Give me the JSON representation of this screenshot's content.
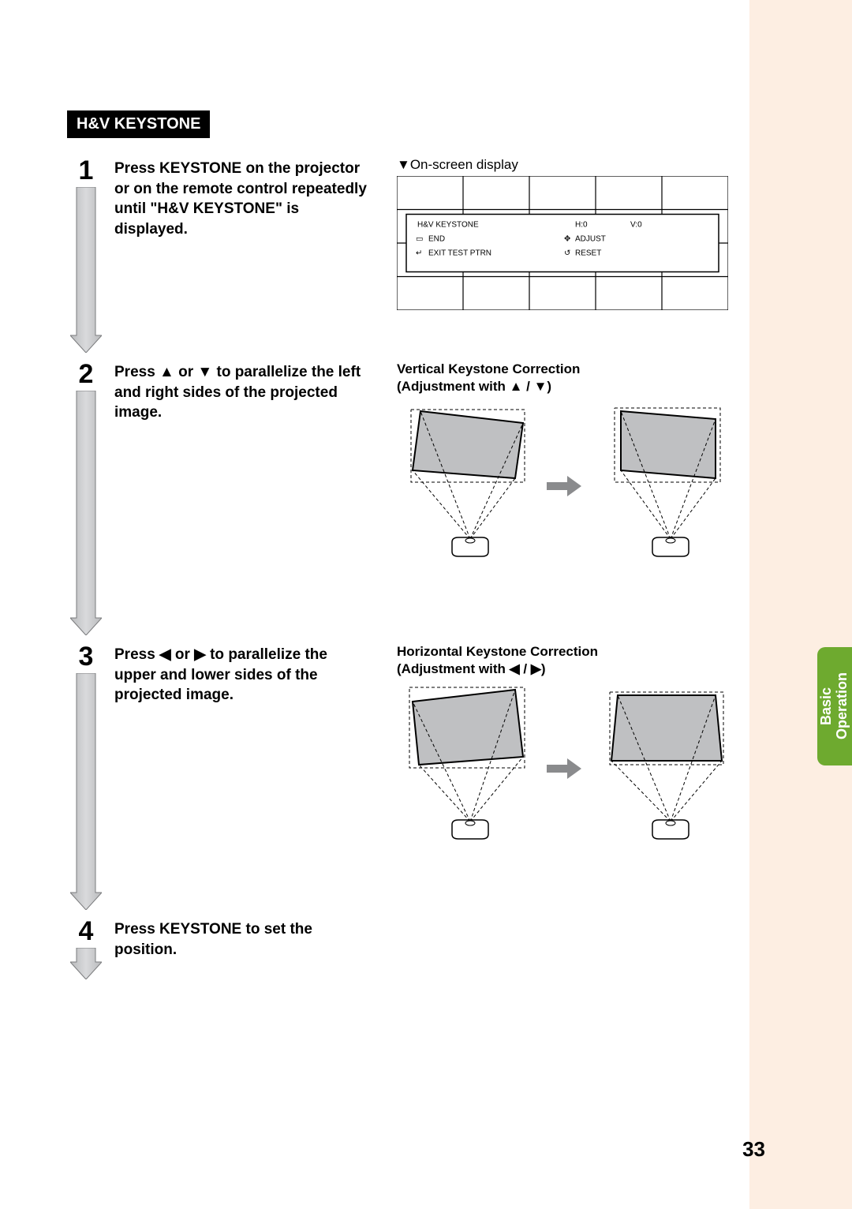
{
  "page_number": "33",
  "section_header": "H&V KEYSTONE",
  "side_tab": {
    "line1": "Basic",
    "line2": "Operation",
    "bg_color": "#6eaa2f"
  },
  "pink_band_color": "#fdeee2",
  "steps": [
    {
      "num": "1",
      "arrow_height": 210,
      "text_html": "Press <b>KEYSTONE</b> on the projector or on the remote control repeatedly until \"H&V KEYSTONE\" is displayed."
    },
    {
      "num": "2",
      "arrow_height": 310,
      "text_html": "Press ▲ or ▼ to parallelize the left and right sides of the projected image."
    },
    {
      "num": "3",
      "arrow_height": 300,
      "text_html": "Press ◀ or ▶ to parallelize the upper and lower sides of the projected image."
    },
    {
      "num": "4",
      "arrow_height": 40,
      "text_html": "Press <b>KEYSTONE</b> to set the position."
    }
  ],
  "osd": {
    "label": "▼On-screen display",
    "cols": 5,
    "rows": 4,
    "items": {
      "title": "H&V KEYSTONE",
      "h_val": "H:0",
      "v_val": "V:0",
      "end": "END",
      "adjust": "ADJUST",
      "exit": "EXIT TEST PTRN",
      "reset": "RESET"
    },
    "font_size": 10
  },
  "vertical_correction": {
    "heading": "Vertical Keystone Correction",
    "sub": "(Adjustment with ▲ / ▼)"
  },
  "horizontal_correction": {
    "heading": "Horizontal Keystone Correction",
    "sub": "(Adjustment with ◀ / ▶)"
  },
  "step_arrow": {
    "fill_top": "#d9dadc",
    "fill_bottom": "#b9babc",
    "stroke": "#7a7b7d"
  },
  "proj_diagram": {
    "screen_fill": "#bfc0c2",
    "screen_stroke": "#000000",
    "dash": "4 3",
    "projector_fill": "#ffffff",
    "projector_stroke": "#000000"
  },
  "big_arrow_color": "#8a8b8d"
}
